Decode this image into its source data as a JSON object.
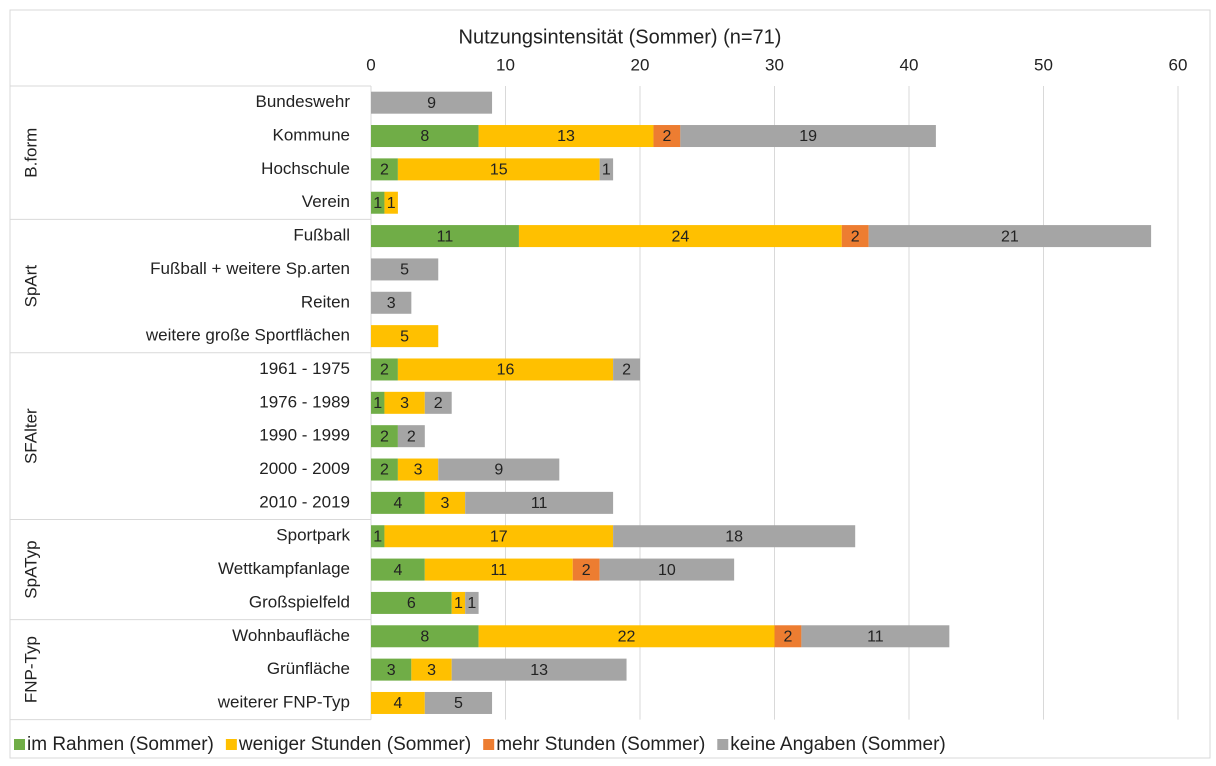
{
  "chart_data": {
    "type": "bar",
    "orientation": "horizontal",
    "stacked": true,
    "title": "Nutzungsintensität (Sommer) (n=71)",
    "groups": [
      {
        "label": "B.form",
        "categories": [
          "Bundeswehr",
          "Kommune",
          "Hochschule",
          "Verein"
        ]
      },
      {
        "label": "SpArt",
        "categories": [
          "Fußball",
          "Fußball + weitere Sp.arten",
          "Reiten",
          "weitere große Sportflächen"
        ]
      },
      {
        "label": "SFAlter",
        "categories": [
          "1961 - 1975",
          "1976 - 1989",
          "1990 - 1999",
          "2000 - 2009",
          "2010 - 2019"
        ]
      },
      {
        "label": "SpATyp",
        "categories": [
          "Sportpark",
          "Wettkampfanlage",
          "Großspielfeld"
        ]
      },
      {
        "label": "FNP-Typ",
        "categories": [
          "Wohnbaufläche",
          "Grünfläche",
          "weiterer FNP-Typ"
        ]
      }
    ],
    "series": [
      {
        "name": "im Rahmen (Sommer)",
        "color": "#70ad47",
        "values": [
          null,
          8,
          2,
          1,
          11,
          null,
          null,
          null,
          2,
          1,
          2,
          2,
          4,
          1,
          4,
          6,
          8,
          3,
          null
        ]
      },
      {
        "name": "weniger Stunden (Sommer)",
        "color": "#ffc000",
        "values": [
          null,
          13,
          15,
          1,
          24,
          null,
          null,
          5,
          16,
          3,
          null,
          3,
          3,
          17,
          11,
          1,
          22,
          3,
          4
        ]
      },
      {
        "name": "mehr Stunden (Sommer)",
        "color": "#ed7d31",
        "values": [
          null,
          2,
          null,
          null,
          2,
          null,
          null,
          null,
          null,
          null,
          null,
          null,
          null,
          null,
          2,
          null,
          2,
          null,
          null
        ]
      },
      {
        "name": "keine Angaben (Sommer)",
        "color": "#a5a5a5",
        "values": [
          9,
          19,
          1,
          null,
          21,
          5,
          3,
          null,
          2,
          2,
          2,
          9,
          11,
          18,
          10,
          1,
          11,
          13,
          5
        ]
      }
    ],
    "xlim": [
      0,
      60
    ],
    "xticks": [
      0,
      10,
      20,
      30,
      40,
      50,
      60
    ],
    "grid": true,
    "legend": "bottom"
  }
}
